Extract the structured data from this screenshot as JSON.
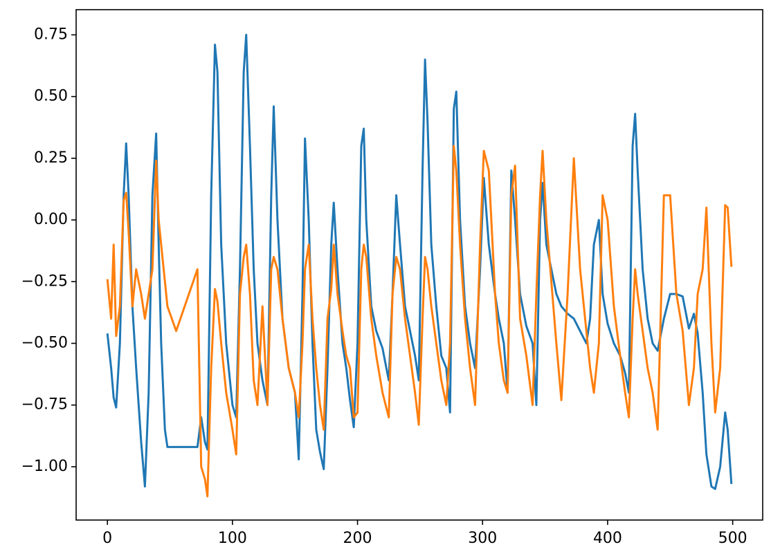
{
  "chart_data": {
    "type": "line",
    "x": [
      0,
      3,
      5,
      7,
      10,
      13,
      15,
      17,
      20,
      23,
      27,
      30,
      33,
      36,
      39,
      41,
      43,
      46,
      48,
      55,
      72,
      75,
      78,
      80,
      83,
      86,
      88,
      91,
      95,
      100,
      103,
      106,
      109,
      111,
      114,
      117,
      120,
      124,
      128,
      131,
      133,
      136,
      140,
      145,
      150,
      153,
      156,
      158,
      161,
      164,
      167,
      170,
      173,
      176,
      179,
      181,
      184,
      188,
      191,
      194,
      197,
      200,
      203,
      205,
      207,
      211,
      215,
      220,
      225,
      228,
      231,
      234,
      238,
      242,
      246,
      249,
      252,
      254,
      256,
      259,
      263,
      267,
      271,
      274,
      277,
      279,
      282,
      286,
      290,
      294,
      298,
      301,
      305,
      310,
      313,
      317,
      320,
      323,
      326,
      330,
      335,
      340,
      343,
      346,
      348,
      351,
      355,
      359,
      363,
      368,
      373,
      378,
      383,
      386,
      389,
      393,
      396,
      400,
      405,
      410,
      414,
      417,
      420,
      422,
      424,
      428,
      432,
      436,
      440,
      445,
      450,
      455,
      460,
      465,
      469,
      472,
      476,
      479,
      483,
      486,
      490,
      494,
      496,
      499
    ],
    "series": [
      {
        "color": "#1f77b4",
        "values": [
          -0.46,
          -0.6,
          -0.72,
          -0.76,
          -0.5,
          0.1,
          0.31,
          0.1,
          -0.35,
          -0.6,
          -0.9,
          -1.08,
          -0.7,
          0.1,
          0.35,
          -0.1,
          -0.5,
          -0.85,
          -0.92,
          -0.92,
          -0.92,
          -0.8,
          -0.9,
          -0.93,
          0.1,
          0.71,
          0.6,
          -0.1,
          -0.5,
          -0.75,
          -0.8,
          -0.2,
          0.6,
          0.75,
          0.3,
          -0.2,
          -0.5,
          -0.65,
          -0.75,
          0.1,
          0.46,
          0.0,
          -0.4,
          -0.6,
          -0.7,
          -0.97,
          -0.3,
          0.33,
          0.0,
          -0.5,
          -0.85,
          -0.94,
          -1.01,
          -0.6,
          -0.1,
          0.07,
          -0.2,
          -0.5,
          -0.6,
          -0.73,
          -0.84,
          -0.5,
          0.3,
          0.37,
          0.0,
          -0.35,
          -0.45,
          -0.52,
          -0.65,
          -0.3,
          0.1,
          -0.1,
          -0.35,
          -0.45,
          -0.55,
          -0.65,
          0.2,
          0.65,
          0.4,
          -0.1,
          -0.35,
          -0.55,
          -0.6,
          -0.78,
          0.45,
          0.52,
          0.0,
          -0.35,
          -0.5,
          -0.6,
          -0.2,
          0.17,
          -0.1,
          -0.3,
          -0.4,
          -0.5,
          -0.7,
          0.2,
          0.0,
          -0.3,
          -0.43,
          -0.5,
          -0.75,
          0.0,
          0.15,
          -0.1,
          -0.2,
          -0.3,
          -0.35,
          -0.38,
          -0.4,
          -0.45,
          -0.5,
          -0.4,
          -0.1,
          0.0,
          -0.3,
          -0.42,
          -0.5,
          -0.55,
          -0.62,
          -0.7,
          0.3,
          0.43,
          0.2,
          -0.2,
          -0.4,
          -0.5,
          -0.53,
          -0.4,
          -0.3,
          -0.3,
          -0.31,
          -0.44,
          -0.38,
          -0.46,
          -0.7,
          -0.95,
          -1.08,
          -1.09,
          -1.0,
          -0.78,
          -0.85,
          -1.07
        ]
      },
      {
        "color": "#ff7f0e",
        "values": [
          -0.24,
          -0.4,
          -0.1,
          -0.47,
          -0.35,
          0.08,
          0.11,
          -0.05,
          -0.35,
          -0.2,
          -0.3,
          -0.4,
          -0.3,
          -0.2,
          0.24,
          0.0,
          -0.1,
          -0.25,
          -0.35,
          -0.45,
          -0.2,
          -1.0,
          -1.05,
          -1.12,
          -0.6,
          -0.28,
          -0.33,
          -0.5,
          -0.7,
          -0.85,
          -0.95,
          -0.3,
          -0.15,
          -0.1,
          -0.3,
          -0.65,
          -0.75,
          -0.35,
          -0.75,
          -0.2,
          -0.15,
          -0.2,
          -0.4,
          -0.6,
          -0.7,
          -0.8,
          -0.5,
          -0.2,
          -0.1,
          -0.4,
          -0.6,
          -0.75,
          -0.85,
          -0.4,
          -0.28,
          -0.1,
          -0.3,
          -0.45,
          -0.55,
          -0.6,
          -0.8,
          -0.78,
          -0.2,
          -0.1,
          -0.15,
          -0.4,
          -0.55,
          -0.7,
          -0.8,
          -0.3,
          -0.15,
          -0.2,
          -0.4,
          -0.55,
          -0.7,
          -0.83,
          -0.4,
          -0.15,
          -0.2,
          -0.35,
          -0.5,
          -0.65,
          -0.75,
          -0.5,
          0.3,
          0.2,
          -0.1,
          -0.4,
          -0.6,
          -0.75,
          -0.1,
          0.28,
          0.2,
          -0.3,
          -0.5,
          -0.65,
          -0.7,
          0.1,
          0.22,
          -0.4,
          -0.55,
          -0.75,
          -0.3,
          0.1,
          0.28,
          0.0,
          -0.25,
          -0.5,
          -0.73,
          -0.3,
          0.25,
          -0.2,
          -0.45,
          -0.6,
          -0.7,
          -0.5,
          0.1,
          0.0,
          -0.35,
          -0.55,
          -0.7,
          -0.8,
          -0.4,
          -0.2,
          -0.3,
          -0.45,
          -0.6,
          -0.7,
          -0.85,
          0.1,
          0.1,
          -0.3,
          -0.45,
          -0.75,
          -0.6,
          -0.3,
          -0.2,
          0.05,
          -0.5,
          -0.78,
          -0.6,
          0.06,
          0.05,
          -0.19
        ]
      }
    ],
    "xlim": [
      -25,
      524
    ],
    "ylim": [
      -1.216,
      0.852
    ],
    "xticks": [
      0,
      100,
      200,
      300,
      400,
      500
    ],
    "yticks": [
      0.75,
      {
        "value": 0.5,
        "label": "0.50"
      },
      0.25,
      {
        "value": 0,
        "label": "0.00"
      },
      {
        "value": -0.25,
        "label": "−0.25"
      },
      {
        "value": -0.5,
        "label": "−0.50"
      },
      {
        "value": -0.75,
        "label": "−0.75"
      },
      {
        "value": -1,
        "label": "−1.00"
      }
    ]
  }
}
